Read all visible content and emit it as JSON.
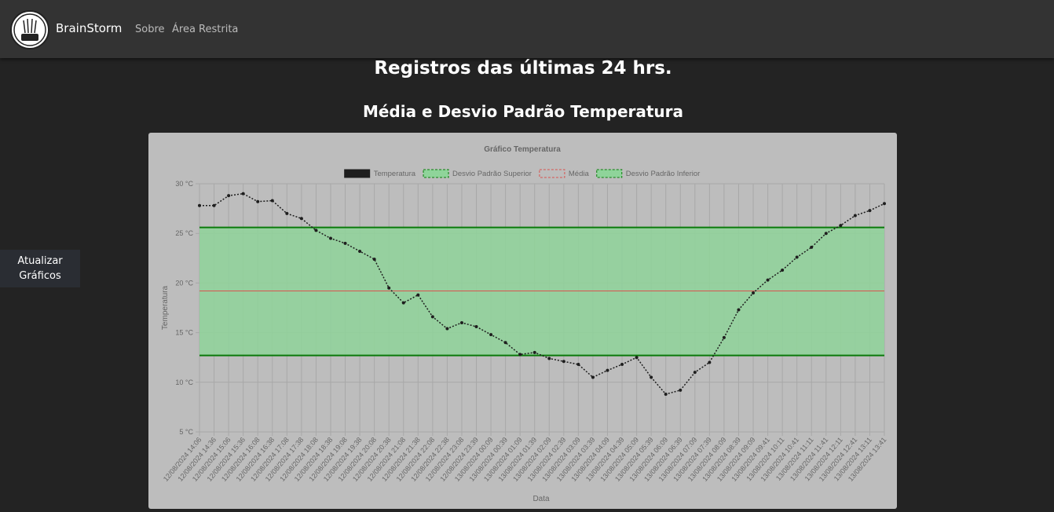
{
  "navbar": {
    "brand": "BrainStorm",
    "links": [
      "Sobre",
      "Área Restrita"
    ]
  },
  "heading": "Registros das últimas 24 hrs.",
  "subheading": "Média e Desvio Padrão Temperatura",
  "sidebar": {
    "button": "Atualizar Gráficos"
  },
  "chart_data": {
    "type": "line",
    "title": "Gráfico Temperatura",
    "x_label": "Data",
    "y_label": "Temperatura",
    "categories": [
      "12/08/2024 14:06",
      "12/08/2024 14:36",
      "12/08/2024 15:06",
      "12/08/2024 15:36",
      "12/08/2024 16:08",
      "12/08/2024 16:38",
      "12/08/2024 17:08",
      "12/08/2024 17:38",
      "12/08/2024 18:08",
      "12/08/2024 18:38",
      "12/08/2024 19:08",
      "12/08/2024 19:38",
      "12/08/2024 20:08",
      "12/08/2024 20:38",
      "12/08/2024 21:08",
      "12/08/2024 21:38",
      "12/08/2024 22:08",
      "12/08/2024 22:38",
      "12/08/2024 23:08",
      "12/08/2024 23:39",
      "13/08/2024 00:09",
      "13/08/2024 00:39",
      "13/08/2024 01:09",
      "13/08/2024 01:39",
      "13/08/2024 02:09",
      "13/08/2024 02:39",
      "13/08/2024 03:09",
      "13/08/2024 03:39",
      "13/08/2024 04:09",
      "13/08/2024 04:39",
      "13/08/2024 05:09",
      "13/08/2024 05:39",
      "13/08/2024 06:09",
      "13/08/2024 06:39",
      "13/08/2024 07:09",
      "13/08/2024 07:39",
      "13/08/2024 08:09",
      "13/08/2024 08:39",
      "13/08/2024 09:09",
      "13/08/2024 09:41",
      "13/08/2024 10:11",
      "13/08/2024 10:41",
      "13/08/2024 11:11",
      "13/08/2024 11:41",
      "13/08/2024 12:11",
      "13/08/2024 12:41",
      "13/08/2024 13:11",
      "13/08/2024 13:41"
    ],
    "series": [
      {
        "name": "Temperatura",
        "color": "#1e1e1e",
        "values": [
          27.8,
          27.8,
          28.8,
          29.0,
          28.2,
          28.3,
          27.0,
          26.5,
          25.3,
          24.5,
          24.0,
          23.2,
          22.4,
          19.5,
          18.0,
          18.8,
          16.6,
          15.4,
          16.0,
          15.6,
          14.8,
          14.0,
          12.8,
          13.0,
          12.4,
          12.1,
          11.8,
          10.5,
          11.2,
          11.8,
          12.5,
          10.5,
          8.8,
          9.2,
          11.0,
          12.0,
          14.5,
          17.3,
          19.0,
          20.3,
          21.3,
          22.6,
          23.6,
          25.0,
          25.8,
          26.8,
          27.3,
          28.0
        ]
      },
      {
        "name": "Desvio Padrão Superior",
        "color": "#0a7a0a",
        "fill": "#8fd49a",
        "value": 25.6
      },
      {
        "name": "Média",
        "color": "#d9534f",
        "value": 19.2
      },
      {
        "name": "Desvio Padrão Inferior",
        "color": "#0a7a0a",
        "fill": "#8fd49a",
        "value": 12.7
      }
    ],
    "ylim": [
      5,
      30
    ],
    "yticks": [
      {
        "value": 5,
        "label": "5 °C"
      },
      {
        "value": 10,
        "label": "10 °C"
      },
      {
        "value": 15,
        "label": "15 °C"
      },
      {
        "value": 20,
        "label": "20 °C"
      },
      {
        "value": 25,
        "label": "25 °C"
      },
      {
        "value": 30,
        "label": "30 °C"
      }
    ],
    "grid": true,
    "legend": "top"
  }
}
